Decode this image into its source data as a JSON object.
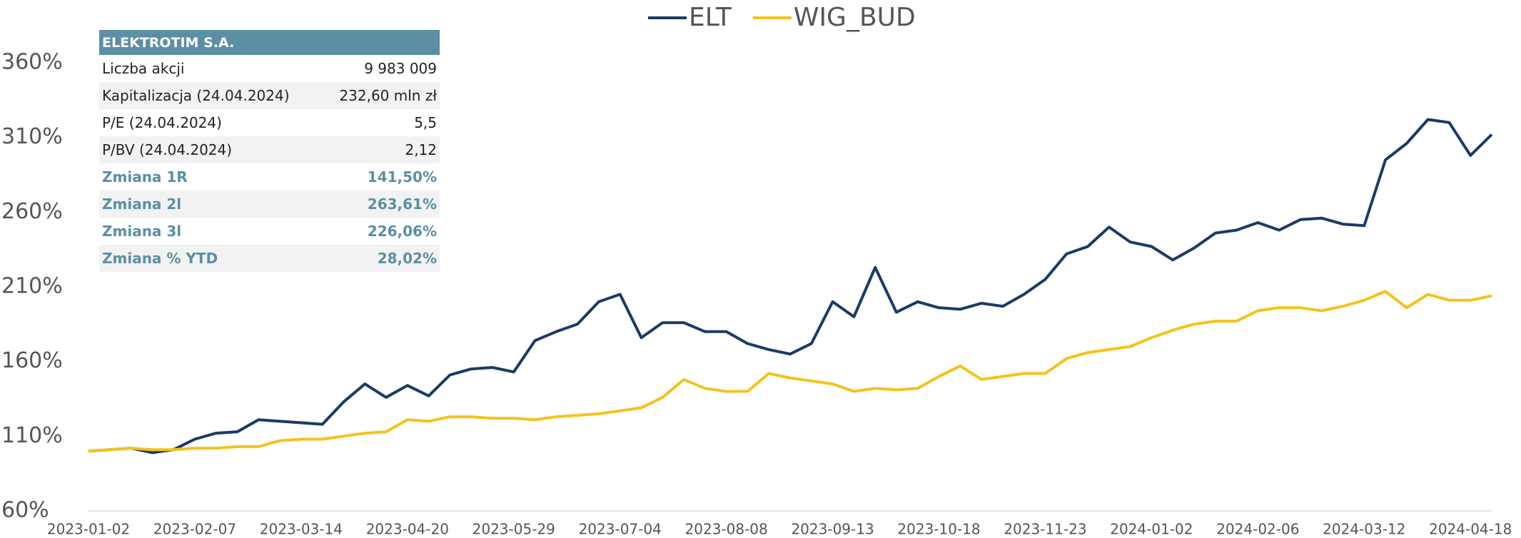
{
  "chart_data": {
    "type": "line",
    "categories": [
      "2023-01-02",
      null,
      null,
      null,
      null,
      "2023-02-07",
      null,
      null,
      null,
      null,
      "2023-03-14",
      null,
      null,
      null,
      null,
      "2023-04-20",
      null,
      null,
      null,
      null,
      "2023-05-29",
      null,
      null,
      null,
      null,
      "2023-07-04",
      null,
      null,
      null,
      null,
      "2023-08-08",
      null,
      null,
      null,
      null,
      "2023-09-13",
      null,
      null,
      null,
      null,
      "2023-10-18",
      null,
      null,
      null,
      null,
      "2023-11-23",
      null,
      null,
      null,
      null,
      "2024-01-02",
      null,
      null,
      null,
      null,
      "2024-02-06",
      null,
      null,
      null,
      null,
      "2024-03-12",
      null,
      null,
      null,
      null,
      "2024-04-18",
      null
    ],
    "series": [
      {
        "name": "ELT",
        "color": "#1b3a66",
        "values": [
          100,
          101,
          102,
          99,
          101,
          108,
          112,
          113,
          121,
          120,
          119,
          118,
          133,
          145,
          136,
          144,
          137,
          151,
          155,
          156,
          153,
          174,
          180,
          185,
          200,
          205,
          176,
          186,
          186,
          180,
          180,
          172,
          168,
          165,
          172,
          200,
          190,
          223,
          193,
          200,
          196,
          195,
          199,
          197,
          205,
          215,
          232,
          237,
          250,
          240,
          237,
          228,
          236,
          246,
          248,
          253,
          248,
          255,
          256,
          252,
          251,
          295,
          306,
          322,
          320,
          298,
          312
        ]
      },
      {
        "name": "WIG_BUD",
        "color": "#f5c21b",
        "values": [
          100,
          101,
          102,
          101,
          101,
          102,
          102,
          103,
          103,
          107,
          108,
          108,
          110,
          112,
          113,
          121,
          120,
          123,
          123,
          122,
          122,
          121,
          123,
          124,
          125,
          127,
          129,
          136,
          148,
          142,
          140,
          140,
          152,
          149,
          147,
          145,
          140,
          142,
          141,
          142,
          150,
          157,
          148,
          150,
          152,
          152,
          162,
          166,
          168,
          170,
          176,
          181,
          185,
          187,
          187,
          194,
          196,
          196,
          194,
          197,
          201,
          207,
          196,
          205,
          201,
          201,
          204
        ]
      }
    ],
    "ylim": [
      60,
      360
    ],
    "yticks": [
      {
        "value": 60,
        "label": "60%"
      },
      {
        "value": 110,
        "label": "110%"
      },
      {
        "value": 160,
        "label": "160%"
      },
      {
        "value": 210,
        "label": "210%"
      },
      {
        "value": 260,
        "label": "260%"
      },
      {
        "value": 310,
        "label": "310%"
      },
      {
        "value": 360,
        "label": "360%"
      }
    ],
    "grid": false,
    "legend": "top"
  },
  "table": {
    "title": "ELEKTROTIM S.A.",
    "rows": [
      [
        "Liczba akcji",
        "9 983 009"
      ],
      [
        "Kapitalizacja (24.04.2024)",
        "232,60 mln zł"
      ],
      [
        "P/E (24.04.2024)",
        "5,5"
      ],
      [
        "P/BV (24.04.2024)",
        "2,12"
      ],
      [
        "Zmiana 1R",
        "141,50%"
      ],
      [
        "Zmiana 2l",
        "263,61%"
      ],
      [
        "Zmiana 3l",
        "226,06%"
      ],
      [
        "Zmiana % YTD",
        "28,02%"
      ]
    ]
  }
}
